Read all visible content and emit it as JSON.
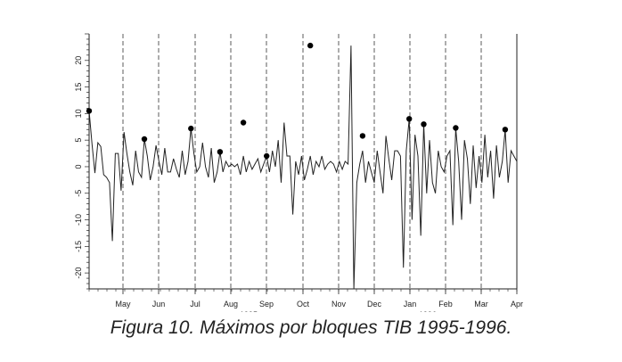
{
  "caption": "Figura 10. Máximos por bloques TIB 1995-1996.",
  "chart_data": {
    "type": "line",
    "title": "",
    "xlabel": "",
    "ylabel": "",
    "ylim": [
      -23,
      25
    ],
    "y_ticks": [
      20,
      15,
      10,
      5,
      0,
      -5,
      -10,
      -15,
      -20
    ],
    "x_ticks": [
      "May",
      "Jun",
      "Jul",
      "Aug",
      "Sep",
      "Oct",
      "Nov",
      "Dec",
      "Jan",
      "Feb",
      "Mar",
      "Apr"
    ],
    "year_labels": [
      "1995",
      "1996"
    ],
    "year_label_under": [
      "Sep",
      "Feb"
    ],
    "grid": "dashed vertical lines at month boundaries",
    "series": [
      {
        "values": [
          10.5,
          4.2,
          -1.2,
          4.5,
          3.8,
          -1.5,
          -2.0,
          -3.0,
          -14.0,
          2.5,
          2.5,
          -4.5,
          6.5,
          2.5,
          -1.0,
          -3.5,
          3.0,
          -1.0,
          -2.0,
          5.2,
          2.0,
          -2.5,
          0.0,
          4.0,
          1.0,
          -1.5,
          3.5,
          -1.0,
          -1.0,
          1.5,
          -0.5,
          -2.0,
          3.0,
          -1.5,
          1.0,
          7.2,
          2.5,
          -1.0,
          0.0,
          4.5,
          0.0,
          -2.0,
          3.5,
          -3.0,
          -1.0,
          2.8,
          -1.0,
          1.0,
          0.0,
          0.5,
          0.0,
          0.5,
          -1.5,
          2.0,
          -1.0,
          1.0,
          -0.5,
          0.5,
          1.5,
          -1.0,
          0.5,
          2.0,
          -1.0,
          3.0,
          0.0,
          5.0,
          -3.0,
          8.3,
          2.0,
          2.0,
          -9.0,
          1.0,
          -1.5,
          2.0,
          -2.5,
          -0.5,
          2.0,
          -1.5,
          1.0,
          0.0,
          2.0,
          -0.5,
          0.5,
          1.0,
          0.5,
          -1.0,
          1.0,
          -0.5,
          1.0,
          0.5,
          22.8,
          -23.0,
          -3.0,
          0.5,
          3.0,
          -3.0,
          1.0,
          -1.0,
          -3.0,
          3.0,
          -1.0,
          -5.0,
          5.8,
          1.5,
          -2.5,
          3.0,
          3.0,
          2.0,
          -19.0,
          3.0,
          9.0,
          -10.0,
          6.0,
          2.0,
          -13.0,
          8.0,
          -5.0,
          5.0,
          -3.0,
          -5.0,
          3.0,
          0.0,
          -1.0,
          2.0,
          3.0,
          -11.0,
          7.3,
          1.0,
          -10.0,
          5.0,
          1.5,
          -7.0,
          4.0,
          -4.0,
          2.0,
          -3.0,
          6.0,
          -2.0,
          3.0,
          -6.0,
          4.0,
          -2.0,
          1.0,
          7.0,
          -3.0,
          3.0,
          2.0,
          1.0
        ],
        "maxima": [
          10.5,
          5.2,
          7.2,
          2.8,
          8.3,
          2.0,
          22.8,
          5.8,
          9.0,
          8.0,
          7.3,
          7.0
        ]
      }
    ]
  }
}
